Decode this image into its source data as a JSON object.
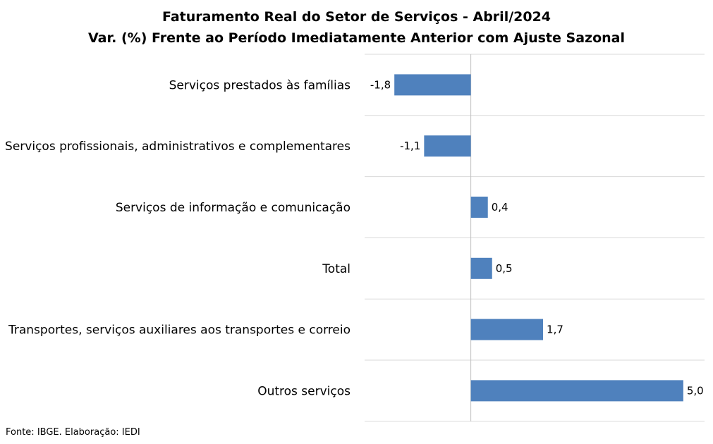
{
  "chart_data": {
    "type": "bar",
    "orientation": "horizontal",
    "title": "Faturamento Real do Setor de Serviços - Abril/2024",
    "subtitle": "Var. (%) Frente ao Período Imediatamente Anterior com Ajuste Sazonal",
    "categories": [
      "Serviços prestados às famílias",
      "Serviços profissionais, administrativos e complementares",
      "Serviços de informação e comunicação",
      "Total",
      "Transportes, serviços auxiliares aos transportes e correio",
      "Outros serviços"
    ],
    "values": [
      -1.8,
      -1.1,
      0.4,
      0.5,
      1.7,
      5.0
    ],
    "value_labels": [
      "-1,8",
      "-1,1",
      "0,4",
      "0,5",
      "1,7",
      "5,0"
    ],
    "xlim": [
      -2.5,
      5.5
    ],
    "grid": true,
    "bar_color": "#4f81bd",
    "grid_color": "#d9d9d9",
    "axis_color": "#bfbfbf"
  },
  "source": "Fonte: IBGE. Elaboração: IEDI"
}
